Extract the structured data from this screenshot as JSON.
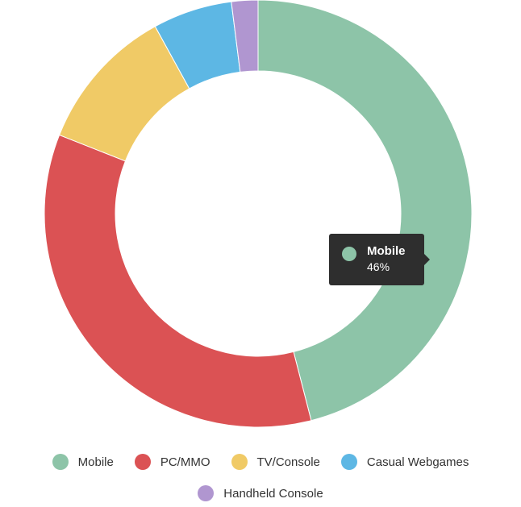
{
  "chart_data": {
    "type": "donut",
    "categories": [
      "Mobile",
      "PC/MMO",
      "TV/Console",
      "Casual Webgames",
      "Handheld Console"
    ],
    "values": [
      46,
      35,
      11,
      6,
      2
    ],
    "value_labels": [
      "46%",
      null,
      null,
      null,
      null
    ],
    "colors": [
      "#8dc4a8",
      "#db5254",
      "#f0ca66",
      "#5db7e4",
      "#b096d0"
    ],
    "tooltip_index": 0
  }
}
